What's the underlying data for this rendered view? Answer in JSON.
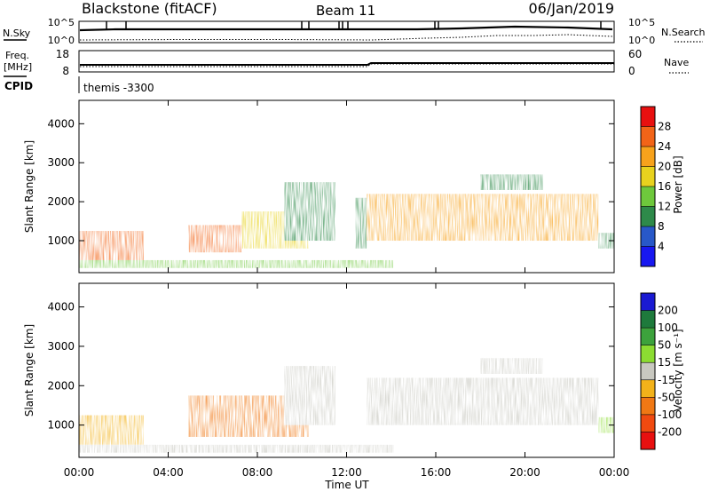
{
  "header": {
    "station": "Blackstone (fitACF)",
    "beam": "Beam 11",
    "date": "06/Jan/2019"
  },
  "status_panels": {
    "nsky_label": "N.Sky",
    "nsearch_label": "N.Search",
    "freq_label_1": "Freq.",
    "freq_label_2": "[MHz]",
    "nave_label": "Nave",
    "cpid_label": "CPID",
    "cpid_value": "themis -3300",
    "noise_ticks_left": [
      "10^5",
      "10^0"
    ],
    "noise_ticks_right": [
      "10^5",
      "10^0"
    ],
    "freq_ticks": [
      "18",
      "8"
    ],
    "nave_ticks": [
      "60",
      "0"
    ]
  },
  "colorbars": {
    "power": {
      "label": "Power [dB]",
      "ticks": [
        "4",
        "8",
        "12",
        "16",
        "20",
        "24",
        "28"
      ],
      "colors": [
        "#1818f0",
        "#2858c8",
        "#2e8a4a",
        "#6ec83c",
        "#e8d21e",
        "#f7a21c",
        "#f26418",
        "#e81010"
      ]
    },
    "velocity": {
      "label": "Velocity [m s⁻¹]",
      "ticks": [
        "200",
        "100",
        "50",
        "15",
        "-15",
        "-50",
        "-100",
        "-200"
      ],
      "colors": [
        "#1a1ad2",
        "#1e7a3c",
        "#3ca23c",
        "#8cdc32",
        "#c8c8c0",
        "#f2b21a",
        "#f07814",
        "#f04a10",
        "#e81010"
      ]
    }
  },
  "chart_data": [
    {
      "type": "heatmap",
      "title": "Power",
      "xlabel": "Time UT",
      "ylabel": "Slant Range [km]",
      "x_ticks": [
        "00:00",
        "04:00",
        "08:00",
        "12:00",
        "16:00",
        "20:00",
        "00:00"
      ],
      "y_ticks": [
        1000,
        2000,
        3000,
        4000
      ],
      "xlim_hours": [
        0,
        24
      ],
      "ylim_km": [
        180,
        4600
      ],
      "colorbar_label": "Power [dB]",
      "regions": [
        {
          "t0": 0.0,
          "t1": 2.9,
          "r0": 500,
          "r1": 1250,
          "value_db": 24
        },
        {
          "t0": 0.0,
          "t1": 14.1,
          "r0": 300,
          "r1": 500,
          "value_db": 14
        },
        {
          "t0": 4.9,
          "t1": 7.3,
          "r0": 700,
          "r1": 1400,
          "value_db": 25
        },
        {
          "t0": 7.3,
          "t1": 10.3,
          "r0": 800,
          "r1": 1750,
          "value_db": 18
        },
        {
          "t0": 9.2,
          "t1": 11.5,
          "r0": 1000,
          "r1": 2500,
          "value_db": 10
        },
        {
          "t0": 12.4,
          "t1": 12.9,
          "r0": 800,
          "r1": 2100,
          "value_db": 8
        },
        {
          "t0": 12.9,
          "t1": 23.3,
          "r0": 1000,
          "r1": 2200,
          "value_db": 20
        },
        {
          "t0": 18.0,
          "t1": 20.8,
          "r0": 2300,
          "r1": 2700,
          "value_db": 8
        },
        {
          "t0": 23.3,
          "t1": 24.0,
          "r0": 800,
          "r1": 1200,
          "value_db": 8
        }
      ]
    },
    {
      "type": "heatmap",
      "title": "Velocity",
      "xlabel": "Time UT",
      "ylabel": "Slant Range [km]",
      "x_ticks": [
        "00:00",
        "04:00",
        "08:00",
        "12:00",
        "16:00",
        "20:00",
        "00:00"
      ],
      "y_ticks": [
        1000,
        2000,
        3000,
        4000
      ],
      "xlim_hours": [
        0,
        24
      ],
      "ylim_km": [
        180,
        4600
      ],
      "colorbar_label": "Velocity [m s⁻¹]",
      "regions": [
        {
          "t0": 0.0,
          "t1": 2.9,
          "r0": 500,
          "r1": 1250,
          "value_ms": -40
        },
        {
          "t0": 0.0,
          "t1": 14.1,
          "r0": 300,
          "r1": 500,
          "value_ms": 5
        },
        {
          "t0": 4.9,
          "t1": 10.3,
          "r0": 700,
          "r1": 1750,
          "value_ms": -80
        },
        {
          "t0": 9.2,
          "t1": 11.5,
          "r0": 1000,
          "r1": 2500,
          "value_ms": -10
        },
        {
          "t0": 12.9,
          "t1": 23.3,
          "r0": 1000,
          "r1": 2200,
          "value_ms": 0
        },
        {
          "t0": 18.0,
          "t1": 20.8,
          "r0": 2300,
          "r1": 2700,
          "value_ms": 0
        },
        {
          "t0": 23.3,
          "t1": 24.0,
          "r0": 800,
          "r1": 1200,
          "value_ms": 40
        }
      ]
    }
  ]
}
